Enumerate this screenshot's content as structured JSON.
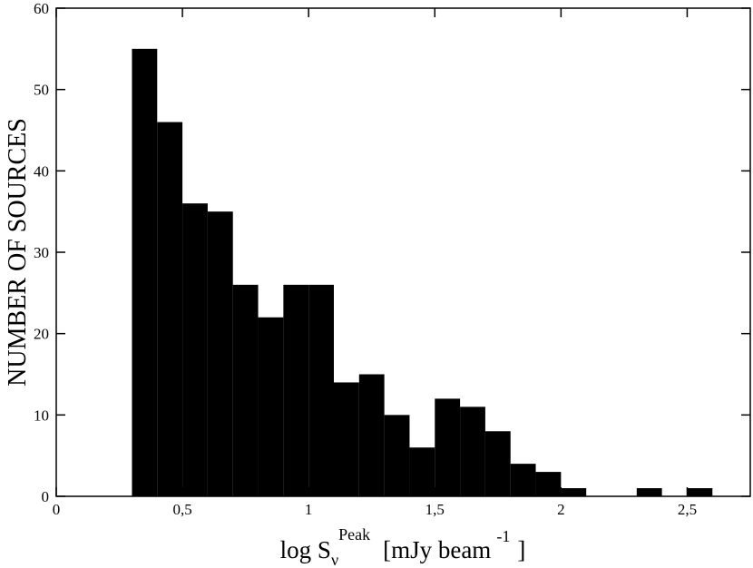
{
  "chart_data": {
    "type": "histogram",
    "ylabel": "NUMBER OF SOURCES",
    "xlabel": {
      "main": "log S",
      "sub": "ν",
      "sup": "Peak",
      "unit": "[mJy beam",
      "unit_sup": "-1",
      "close": "]"
    },
    "bins": [
      0.3,
      0.4,
      0.5,
      0.6,
      0.7,
      0.8,
      0.9,
      1.0,
      1.1,
      1.2,
      1.3,
      1.4,
      1.5,
      1.6,
      1.7,
      1.8,
      1.9,
      2.0,
      2.1,
      2.2,
      2.3,
      2.4,
      2.5,
      2.6
    ],
    "values": [
      55,
      46,
      36,
      35,
      26,
      22,
      26,
      26,
      14,
      15,
      10,
      6,
      12,
      11,
      8,
      4,
      3,
      1,
      0,
      0,
      1,
      0,
      1
    ],
    "color": "#000000",
    "xlim": [
      0,
      2.75
    ],
    "xticks": [
      0,
      {
        "value": 0.5,
        "label": "0,5"
      },
      1,
      {
        "value": 1.5,
        "label": "1,5"
      },
      2,
      {
        "value": 2.5,
        "label": "2,5"
      }
    ],
    "ylim": [
      0,
      60
    ],
    "yticks": [
      0,
      10,
      20,
      30,
      40,
      50,
      60
    ]
  }
}
